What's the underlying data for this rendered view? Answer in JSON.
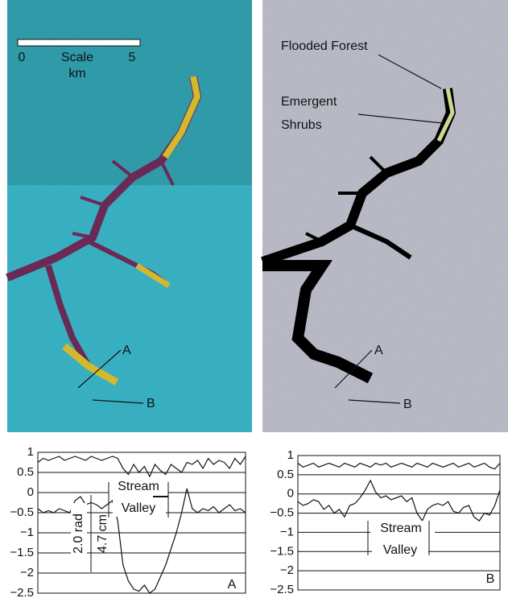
{
  "images": {
    "left": {
      "scale_start": "0",
      "scale_title": "Scale",
      "scale_end": "5",
      "scale_unit": "km",
      "profile_a": "A",
      "profile_b": "B"
    },
    "right": {
      "label_forest": "Flooded Forest",
      "label_shrubs_1": "Emergent",
      "label_shrubs_2": "Shrubs",
      "profile_a": "A",
      "profile_b": "B"
    }
  },
  "chart_data": [
    {
      "type": "line",
      "ylim": [
        -2.5,
        1
      ],
      "yticks": [
        1,
        0.5,
        0,
        {
          "value": -0.5,
          "label": "−0.5"
        },
        {
          "value": -1,
          "label": "−1"
        },
        {
          "value": -1.5,
          "label": "−1.5"
        },
        {
          "value": -2,
          "label": "−2"
        },
        {
          "value": -2.5,
          "label": "−2.5"
        }
      ],
      "grid": true,
      "annotations": [
        "Stream",
        "Valley",
        "2.0 rad",
        "4.7 cm",
        "A"
      ],
      "series": [
        {
          "color": "#111111",
          "values": [
            0.75,
            0.85,
            0.8,
            0.85,
            0.9,
            0.8,
            0.85,
            0.9,
            0.85,
            0.8,
            0.9,
            0.85,
            0.8,
            0.85,
            0.9,
            0.85,
            0.6,
            0.45,
            0.7,
            0.5,
            0.65,
            0.4,
            0.7,
            0.55,
            0.45,
            0.7,
            0.6,
            0.5,
            0.75,
            0.7,
            0.8,
            0.6,
            0.85,
            0.7,
            0.8,
            0.75,
            0.6,
            0.85,
            0.7,
            0.9
          ]
        },
        {
          "color": "#111111",
          "values": [
            -0.4,
            -0.5,
            -0.45,
            -0.5,
            -0.4,
            -0.45,
            -0.5,
            -0.2,
            -0.1,
            -0.3,
            -0.25,
            -0.3,
            -0.4,
            -0.3,
            -0.2,
            -0.7,
            -1.8,
            -2.2,
            -2.4,
            -2.45,
            -2.3,
            -2.5,
            -2.4,
            -2.1,
            -1.8,
            -1.4,
            -1.0,
            -0.5,
            0.1,
            -0.4,
            -0.5,
            -0.4,
            -0.45,
            -0.35,
            -0.5,
            -0.4,
            -0.3,
            -0.45,
            -0.4,
            -0.5
          ]
        }
      ]
    },
    {
      "type": "line",
      "ylim": [
        -2.5,
        1
      ],
      "yticks": [
        1,
        0.5,
        0,
        {
          "value": -0.5,
          "label": "−0.5"
        },
        {
          "value": -1,
          "label": "−1"
        },
        {
          "value": -1.5,
          "label": "−1.5"
        },
        {
          "value": -2,
          "label": "−2"
        },
        {
          "value": -2.5,
          "label": "−2.5"
        }
      ],
      "grid": true,
      "annotations": [
        "Stream",
        "Valley",
        "B"
      ],
      "series": [
        {
          "color": "#111111",
          "values": [
            0.8,
            0.7,
            0.75,
            0.8,
            0.7,
            0.75,
            0.8,
            0.75,
            0.7,
            0.8,
            0.75,
            0.7,
            0.8,
            0.75,
            0.7,
            0.8,
            0.75,
            0.8,
            0.7,
            0.75,
            0.8,
            0.75,
            0.7,
            0.8,
            0.75,
            0.7,
            0.8,
            0.75,
            0.7,
            0.75,
            0.8,
            0.7,
            0.75,
            0.8,
            0.7,
            0.75,
            0.8,
            0.7,
            0.65,
            0.8
          ]
        },
        {
          "color": "#111111",
          "values": [
            -0.2,
            -0.3,
            -0.25,
            -0.15,
            -0.2,
            -0.4,
            -0.3,
            -0.5,
            -0.4,
            -0.6,
            -0.3,
            -0.25,
            -0.1,
            0.1,
            0.35,
            0.05,
            -0.1,
            -0.05,
            -0.15,
            -0.1,
            -0.05,
            -0.2,
            -0.1,
            -0.5,
            -0.7,
            -0.4,
            -0.3,
            -0.25,
            -0.3,
            -0.2,
            -0.45,
            -0.5,
            -0.35,
            -0.3,
            -0.6,
            -0.7,
            -0.5,
            -0.55,
            -0.3,
            0.1
          ]
        }
      ]
    }
  ]
}
